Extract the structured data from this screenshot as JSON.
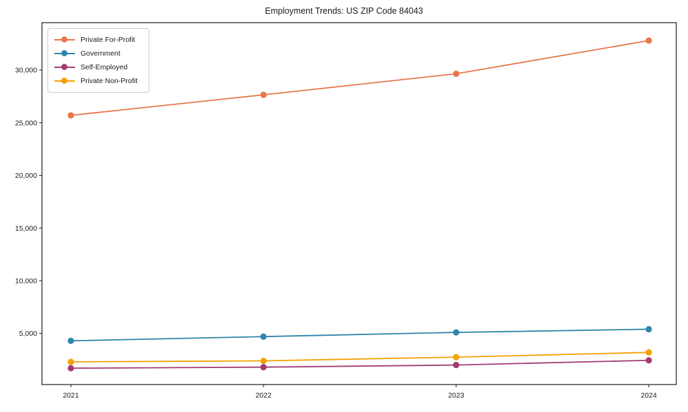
{
  "chart_data": {
    "type": "line",
    "title": "Employment Trends: US ZIP Code 84043",
    "xlabel": "",
    "ylabel": "",
    "categories": [
      "2021",
      "2022",
      "2023",
      "2024"
    ],
    "series": [
      {
        "name": "Private For-Profit",
        "color": "#E8764B",
        "values": [
          25700,
          27650,
          29650,
          32800
        ]
      },
      {
        "name": "Government",
        "color": "#2E86AB",
        "values": [
          4300,
          4700,
          5100,
          5400
        ]
      },
      {
        "name": "Self-Employed",
        "color": "#A23B72",
        "values": [
          1700,
          1800,
          2000,
          2450
        ]
      },
      {
        "name": "Private Non-Profit",
        "color": "#F2A104",
        "values": [
          2300,
          2400,
          2750,
          3200
        ]
      }
    ],
    "ylim": [
      150,
      34500
    ],
    "yticks": [
      5000,
      10000,
      15000,
      20000,
      25000,
      30000
    ],
    "ytick_labels": [
      "5,000",
      "10,000",
      "15,000",
      "20,000",
      "25,000",
      "30,000"
    ],
    "grid": false,
    "legend_position": "upper-left",
    "marker": "circle",
    "axis_color": "#1a1a1a"
  }
}
